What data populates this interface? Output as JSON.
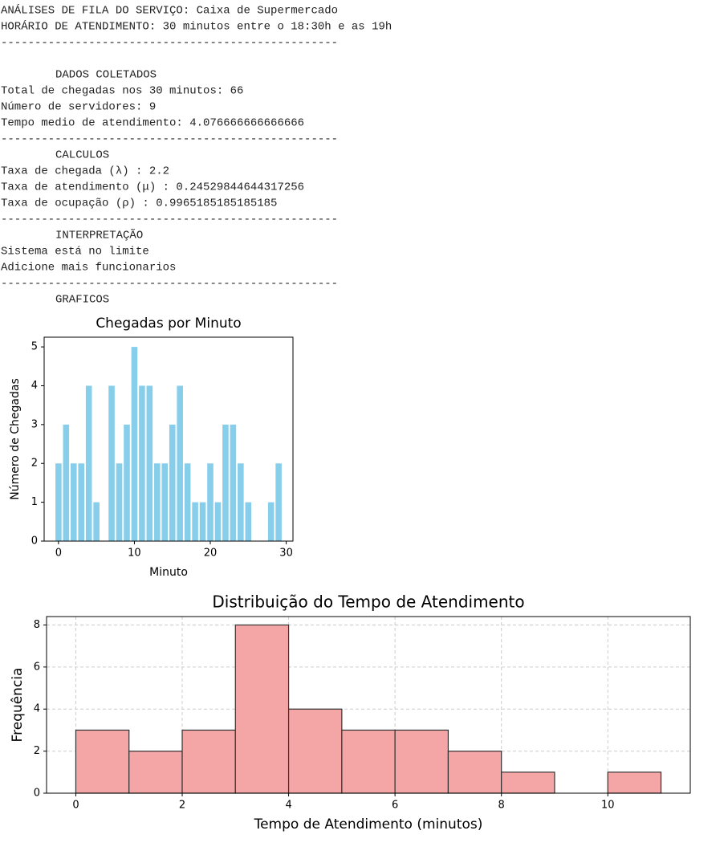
{
  "text_lines": [
    "ANÁLISES DE FILA DO SERVIÇO: Caixa de Supermercado",
    "HORÁRIO DE ATENDIMENTO: 30 minutos entre o 18:30h e as 19h",
    "--------------------------------------------------",
    "DADOS COLETADOS",
    "Total de chegadas nos 30 minutos:  66",
    "Número de servidores: 9",
    "Tempo medio de atendimento: 4.076666666666666",
    "--------------------------------------------------",
    "CALCULOS",
    "Taxa de chegada (λ) : 2.2",
    "Taxa de atendimento (μ) : 0.24529844644317256",
    "Taxa de ocupação (ρ) : 0.9965185185185185",
    "--------------------------------------------------",
    "INTERPRETAÇÃO",
    "Sistema está no limite",
    "Adicione mais funcionarios",
    "--------------------------------------------------",
    "GRAFICOS"
  ],
  "chart_data": [
    {
      "type": "bar",
      "title": "Chegadas por Minuto",
      "x_label": "Minuto",
      "y_label": "Número de Chegadas",
      "x": [
        0,
        1,
        2,
        3,
        4,
        5,
        6,
        7,
        8,
        9,
        10,
        11,
        12,
        13,
        14,
        15,
        16,
        17,
        18,
        19,
        20,
        21,
        22,
        23,
        24,
        25,
        26,
        27,
        28,
        29
      ],
      "values": [
        2,
        3,
        2,
        2,
        4,
        1,
        0,
        4,
        2,
        3,
        5,
        4,
        4,
        2,
        2,
        3,
        4,
        2,
        1,
        1,
        2,
        1,
        3,
        3,
        2,
        1,
        0,
        0,
        1,
        2
      ],
      "color": "#87ceeb",
      "xlim": [
        -1.89,
        30.89
      ],
      "xticks": [
        0,
        10,
        20,
        30
      ],
      "ylim": [
        0,
        5.25
      ],
      "yticks": [
        0,
        1,
        2,
        3,
        4,
        5
      ],
      "grid": false
    },
    {
      "type": "histogram",
      "title": "Distribuição do Tempo de Atendimento",
      "x_label": "Tempo de Atendimento (minutos)",
      "y_label": "Frequência",
      "bins": [
        0,
        1,
        2,
        3,
        4,
        5,
        6,
        7,
        8,
        9,
        10,
        11
      ],
      "values": [
        3,
        2,
        3,
        8,
        4,
        3,
        3,
        2,
        1,
        0,
        1
      ],
      "color": "#f4a5a5",
      "edge_color": "#333333",
      "xlim": [
        -0.55,
        11.55
      ],
      "xticks": [
        0,
        2,
        4,
        6,
        8,
        10
      ],
      "ylim": [
        0,
        8.4
      ],
      "yticks": [
        0,
        2,
        4,
        6,
        8
      ],
      "grid": true
    }
  ]
}
